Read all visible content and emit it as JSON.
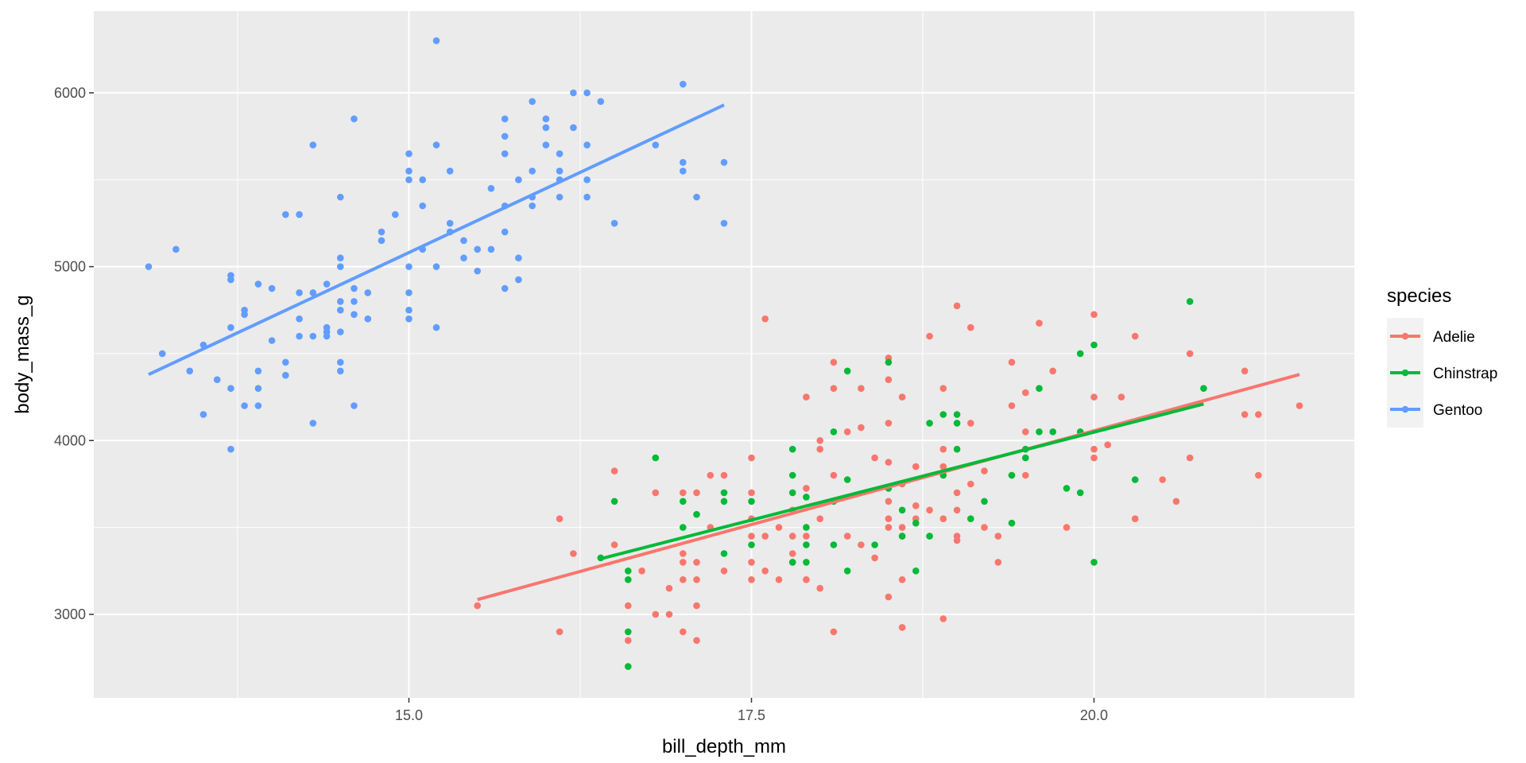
{
  "chart_data": {
    "type": "scatter",
    "xlabel": "bill_depth_mm",
    "ylabel": "body_mass_g",
    "xlim": [
      12.7,
      21.9
    ],
    "ylim": [
      2520,
      6470
    ],
    "x_ticks": [
      15.0,
      17.5,
      20.0
    ],
    "x_tick_labels": [
      "15.0",
      "17.5",
      "20.0"
    ],
    "y_ticks": [
      3000,
      4000,
      5000,
      6000
    ],
    "y_tick_labels": [
      "3000",
      "4000",
      "5000",
      "6000"
    ],
    "grid": true,
    "legend": {
      "title": "species",
      "position": "right"
    },
    "series": [
      {
        "name": "Adelie",
        "color": "#F8766D",
        "trend": [
          [
            15.5,
            3085
          ],
          [
            21.5,
            4380
          ]
        ],
        "points": [
          [
            15.5,
            3050
          ],
          [
            16.1,
            2900
          ],
          [
            16.1,
            3550
          ],
          [
            16.2,
            3350
          ],
          [
            16.5,
            3400
          ],
          [
            16.5,
            3825
          ],
          [
            16.6,
            2850
          ],
          [
            16.6,
            3050
          ],
          [
            16.7,
            3250
          ],
          [
            16.8,
            3000
          ],
          [
            16.8,
            3700
          ],
          [
            16.9,
            3000
          ],
          [
            16.9,
            3150
          ],
          [
            17.0,
            2900
          ],
          [
            17.0,
            3200
          ],
          [
            17.0,
            3300
          ],
          [
            17.0,
            3350
          ],
          [
            17.0,
            3700
          ],
          [
            17.1,
            2850
          ],
          [
            17.1,
            3050
          ],
          [
            17.1,
            3200
          ],
          [
            17.1,
            3300
          ],
          [
            17.1,
            3700
          ],
          [
            17.2,
            3500
          ],
          [
            17.2,
            3800
          ],
          [
            17.3,
            3250
          ],
          [
            17.3,
            3800
          ],
          [
            17.5,
            3200
          ],
          [
            17.5,
            3300
          ],
          [
            17.5,
            3450
          ],
          [
            17.5,
            3550
          ],
          [
            17.5,
            3700
          ],
          [
            17.5,
            3900
          ],
          [
            17.6,
            3250
          ],
          [
            17.6,
            3450
          ],
          [
            17.6,
            4700
          ],
          [
            17.7,
            3200
          ],
          [
            17.7,
            3500
          ],
          [
            17.8,
            3300
          ],
          [
            17.8,
            3350
          ],
          [
            17.8,
            3450
          ],
          [
            17.8,
            3600
          ],
          [
            17.9,
            3200
          ],
          [
            17.9,
            3450
          ],
          [
            17.9,
            3725
          ],
          [
            17.9,
            4250
          ],
          [
            18.0,
            3150
          ],
          [
            18.0,
            3550
          ],
          [
            18.0,
            3950
          ],
          [
            18.0,
            4000
          ],
          [
            18.1,
            2900
          ],
          [
            18.1,
            4300
          ],
          [
            18.1,
            4450
          ],
          [
            18.1,
            3800
          ],
          [
            18.2,
            3450
          ],
          [
            18.2,
            4050
          ],
          [
            18.3,
            3400
          ],
          [
            18.3,
            4075
          ],
          [
            18.3,
            4300
          ],
          [
            18.4,
            3325
          ],
          [
            18.4,
            3900
          ],
          [
            18.5,
            3100
          ],
          [
            18.5,
            3500
          ],
          [
            18.5,
            3550
          ],
          [
            18.5,
            3650
          ],
          [
            18.5,
            3875
          ],
          [
            18.5,
            4100
          ],
          [
            18.5,
            4350
          ],
          [
            18.5,
            4475
          ],
          [
            18.6,
            2925
          ],
          [
            18.6,
            3200
          ],
          [
            18.6,
            3450
          ],
          [
            18.6,
            3500
          ],
          [
            18.6,
            3750
          ],
          [
            18.6,
            4250
          ],
          [
            18.7,
            3550
          ],
          [
            18.7,
            3625
          ],
          [
            18.7,
            3850
          ],
          [
            18.8,
            3600
          ],
          [
            18.8,
            4600
          ],
          [
            18.9,
            2975
          ],
          [
            18.9,
            3550
          ],
          [
            18.9,
            3850
          ],
          [
            18.9,
            3950
          ],
          [
            18.9,
            4300
          ],
          [
            19.0,
            3425
          ],
          [
            19.0,
            3450
          ],
          [
            19.0,
            3600
          ],
          [
            19.0,
            3700
          ],
          [
            19.0,
            4775
          ],
          [
            19.1,
            3750
          ],
          [
            19.1,
            4100
          ],
          [
            19.1,
            4650
          ],
          [
            19.2,
            3500
          ],
          [
            19.2,
            3825
          ],
          [
            19.3,
            3300
          ],
          [
            19.3,
            3450
          ],
          [
            19.4,
            3800
          ],
          [
            19.4,
            4200
          ],
          [
            19.4,
            4450
          ],
          [
            19.5,
            3800
          ],
          [
            19.5,
            4050
          ],
          [
            19.5,
            4275
          ],
          [
            19.6,
            4675
          ],
          [
            19.7,
            4400
          ],
          [
            19.8,
            3500
          ],
          [
            20.0,
            3900
          ],
          [
            20.0,
            3950
          ],
          [
            20.0,
            4250
          ],
          [
            20.0,
            4725
          ],
          [
            20.1,
            3975
          ],
          [
            20.2,
            4250
          ],
          [
            20.3,
            3550
          ],
          [
            20.3,
            4600
          ],
          [
            20.5,
            3775
          ],
          [
            20.6,
            3650
          ],
          [
            20.7,
            3900
          ],
          [
            20.7,
            4500
          ],
          [
            21.1,
            4150
          ],
          [
            21.1,
            4400
          ],
          [
            21.2,
            3800
          ],
          [
            21.2,
            4150
          ],
          [
            21.5,
            4200
          ]
        ]
      },
      {
        "name": "Chinstrap",
        "color": "#00BA38",
        "trend": [
          [
            16.4,
            3320
          ],
          [
            20.8,
            4210
          ]
        ],
        "points": [
          [
            16.4,
            3325
          ],
          [
            16.5,
            3650
          ],
          [
            16.6,
            2700
          ],
          [
            16.6,
            2900
          ],
          [
            16.6,
            3200
          ],
          [
            16.6,
            3250
          ],
          [
            16.8,
            3900
          ],
          [
            17.0,
            3500
          ],
          [
            17.0,
            3650
          ],
          [
            17.1,
            3575
          ],
          [
            17.3,
            3350
          ],
          [
            17.3,
            3650
          ],
          [
            17.3,
            3700
          ],
          [
            17.5,
            3400
          ],
          [
            17.5,
            3650
          ],
          [
            17.8,
            3300
          ],
          [
            17.8,
            3700
          ],
          [
            17.8,
            3800
          ],
          [
            17.8,
            3950
          ],
          [
            17.9,
            3300
          ],
          [
            17.9,
            3400
          ],
          [
            17.9,
            3500
          ],
          [
            17.9,
            3675
          ],
          [
            18.1,
            3400
          ],
          [
            18.1,
            3650
          ],
          [
            18.1,
            4050
          ],
          [
            18.2,
            3250
          ],
          [
            18.2,
            3775
          ],
          [
            18.2,
            4400
          ],
          [
            18.4,
            3400
          ],
          [
            18.5,
            3725
          ],
          [
            18.5,
            4450
          ],
          [
            18.6,
            3450
          ],
          [
            18.6,
            3600
          ],
          [
            18.7,
            3250
          ],
          [
            18.7,
            3525
          ],
          [
            18.8,
            3450
          ],
          [
            18.8,
            4100
          ],
          [
            18.9,
            3800
          ],
          [
            18.9,
            4150
          ],
          [
            19.0,
            3950
          ],
          [
            19.0,
            4100
          ],
          [
            19.0,
            4150
          ],
          [
            19.1,
            3550
          ],
          [
            19.2,
            3650
          ],
          [
            19.4,
            3525
          ],
          [
            19.4,
            3800
          ],
          [
            19.5,
            3900
          ],
          [
            19.5,
            3950
          ],
          [
            19.6,
            4050
          ],
          [
            19.6,
            4300
          ],
          [
            19.7,
            4050
          ],
          [
            19.8,
            3725
          ],
          [
            19.9,
            3700
          ],
          [
            19.9,
            4050
          ],
          [
            19.9,
            4500
          ],
          [
            20.0,
            3300
          ],
          [
            20.0,
            4550
          ],
          [
            20.3,
            3775
          ],
          [
            20.7,
            4800
          ],
          [
            20.8,
            4300
          ]
        ]
      },
      {
        "name": "Gentoo",
        "color": "#619CFF",
        "trend": [
          [
            13.1,
            4380
          ],
          [
            17.3,
            5930
          ]
        ],
        "points": [
          [
            13.1,
            5000
          ],
          [
            13.2,
            4500
          ],
          [
            13.3,
            5100
          ],
          [
            13.4,
            4400
          ],
          [
            13.5,
            4150
          ],
          [
            13.5,
            4550
          ],
          [
            13.6,
            4350
          ],
          [
            13.7,
            3950
          ],
          [
            13.7,
            4300
          ],
          [
            13.7,
            4650
          ],
          [
            13.7,
            4925
          ],
          [
            13.7,
            4950
          ],
          [
            13.8,
            4200
          ],
          [
            13.8,
            4725
          ],
          [
            13.8,
            4750
          ],
          [
            13.9,
            4200
          ],
          [
            13.9,
            4300
          ],
          [
            13.9,
            4400
          ],
          [
            13.9,
            4900
          ],
          [
            14.0,
            4575
          ],
          [
            14.0,
            4875
          ],
          [
            14.1,
            4375
          ],
          [
            14.1,
            4450
          ],
          [
            14.1,
            5300
          ],
          [
            14.2,
            4600
          ],
          [
            14.2,
            4700
          ],
          [
            14.2,
            4850
          ],
          [
            14.2,
            5300
          ],
          [
            14.3,
            4100
          ],
          [
            14.3,
            4600
          ],
          [
            14.3,
            4850
          ],
          [
            14.3,
            5700
          ],
          [
            14.4,
            4600
          ],
          [
            14.4,
            4625
          ],
          [
            14.4,
            4650
          ],
          [
            14.4,
            4900
          ],
          [
            14.5,
            4400
          ],
          [
            14.5,
            4450
          ],
          [
            14.5,
            4625
          ],
          [
            14.5,
            4750
          ],
          [
            14.5,
            4800
          ],
          [
            14.5,
            5000
          ],
          [
            14.5,
            5050
          ],
          [
            14.5,
            5400
          ],
          [
            14.6,
            4200
          ],
          [
            14.6,
            4725
          ],
          [
            14.6,
            4800
          ],
          [
            14.6,
            4875
          ],
          [
            14.6,
            5850
          ],
          [
            14.7,
            4700
          ],
          [
            14.7,
            4850
          ],
          [
            14.8,
            5150
          ],
          [
            14.8,
            5200
          ],
          [
            14.9,
            5300
          ],
          [
            15.0,
            4700
          ],
          [
            15.0,
            4750
          ],
          [
            15.0,
            4850
          ],
          [
            15.0,
            5000
          ],
          [
            15.0,
            5500
          ],
          [
            15.0,
            5550
          ],
          [
            15.0,
            5650
          ],
          [
            15.1,
            5100
          ],
          [
            15.1,
            5350
          ],
          [
            15.1,
            5500
          ],
          [
            15.2,
            4650
          ],
          [
            15.2,
            5000
          ],
          [
            15.2,
            5700
          ],
          [
            15.2,
            6300
          ],
          [
            15.3,
            5200
          ],
          [
            15.3,
            5250
          ],
          [
            15.3,
            5550
          ],
          [
            15.4,
            5050
          ],
          [
            15.4,
            5150
          ],
          [
            15.5,
            4975
          ],
          [
            15.5,
            5100
          ],
          [
            15.6,
            5450
          ],
          [
            15.6,
            5100
          ],
          [
            15.7,
            4875
          ],
          [
            15.7,
            5200
          ],
          [
            15.7,
            5350
          ],
          [
            15.7,
            5650
          ],
          [
            15.7,
            5750
          ],
          [
            15.7,
            5850
          ],
          [
            15.8,
            4925
          ],
          [
            15.8,
            5050
          ],
          [
            15.8,
            5500
          ],
          [
            15.9,
            5350
          ],
          [
            15.9,
            5400
          ],
          [
            15.9,
            5550
          ],
          [
            15.9,
            5950
          ],
          [
            16.0,
            5700
          ],
          [
            16.0,
            5800
          ],
          [
            16.0,
            5850
          ],
          [
            16.1,
            5400
          ],
          [
            16.1,
            5500
          ],
          [
            16.1,
            5550
          ],
          [
            16.1,
            5650
          ],
          [
            16.2,
            5800
          ],
          [
            16.2,
            6000
          ],
          [
            16.3,
            5400
          ],
          [
            16.3,
            5500
          ],
          [
            16.3,
            5700
          ],
          [
            16.3,
            6000
          ],
          [
            16.4,
            5950
          ],
          [
            16.5,
            5250
          ],
          [
            16.8,
            5700
          ],
          [
            17.0,
            5550
          ],
          [
            17.0,
            5600
          ],
          [
            17.0,
            6050
          ],
          [
            17.1,
            5400
          ],
          [
            17.3,
            5250
          ],
          [
            17.3,
            5600
          ]
        ]
      }
    ]
  }
}
